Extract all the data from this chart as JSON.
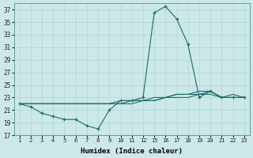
{
  "xlabel": "Humidex (Indice chaleur)",
  "x_tick_labels": [
    "1",
    "2",
    "3",
    "4",
    "5",
    "6",
    "7",
    "8",
    "9",
    "10",
    "11",
    "12",
    "15",
    "16",
    "17",
    "18",
    "19",
    "20",
    "21",
    "22",
    "23"
  ],
  "ylim": [
    17,
    38
  ],
  "y_ticks": [
    17,
    19,
    21,
    23,
    25,
    27,
    29,
    31,
    33,
    35,
    37
  ],
  "bg_color": "#cce8e8",
  "grid_color": "#b0d8d8",
  "line_color": "#1a6e6a",
  "line1_y": [
    22.0,
    21.5,
    20.5,
    20.0,
    19.5,
    19.5,
    18.5,
    18.0,
    21.0,
    22.5,
    22.5,
    23.0,
    36.5,
    37.5,
    35.5,
    31.5,
    23.0,
    24.0,
    23.0,
    23.0,
    23.0
  ],
  "line2_y": [
    22.0,
    22.0,
    22.0,
    22.0,
    22.0,
    22.0,
    22.0,
    22.0,
    22.0,
    22.5,
    22.5,
    22.5,
    22.5,
    23.0,
    23.0,
    23.0,
    23.5,
    24.0,
    23.0,
    23.0,
    23.0
  ],
  "line3_y": [
    22.0,
    22.0,
    22.0,
    22.0,
    22.0,
    22.0,
    22.0,
    22.0,
    22.0,
    22.0,
    22.5,
    22.5,
    23.0,
    23.0,
    23.5,
    23.5,
    24.0,
    24.0,
    23.0,
    23.5,
    23.0
  ],
  "line4_y": [
    22.0,
    22.0,
    22.0,
    22.0,
    22.0,
    22.0,
    22.0,
    22.0,
    22.0,
    22.0,
    22.0,
    22.5,
    22.5,
    23.0,
    23.5,
    23.5,
    23.5,
    23.5,
    23.0,
    23.0,
    23.0
  ]
}
